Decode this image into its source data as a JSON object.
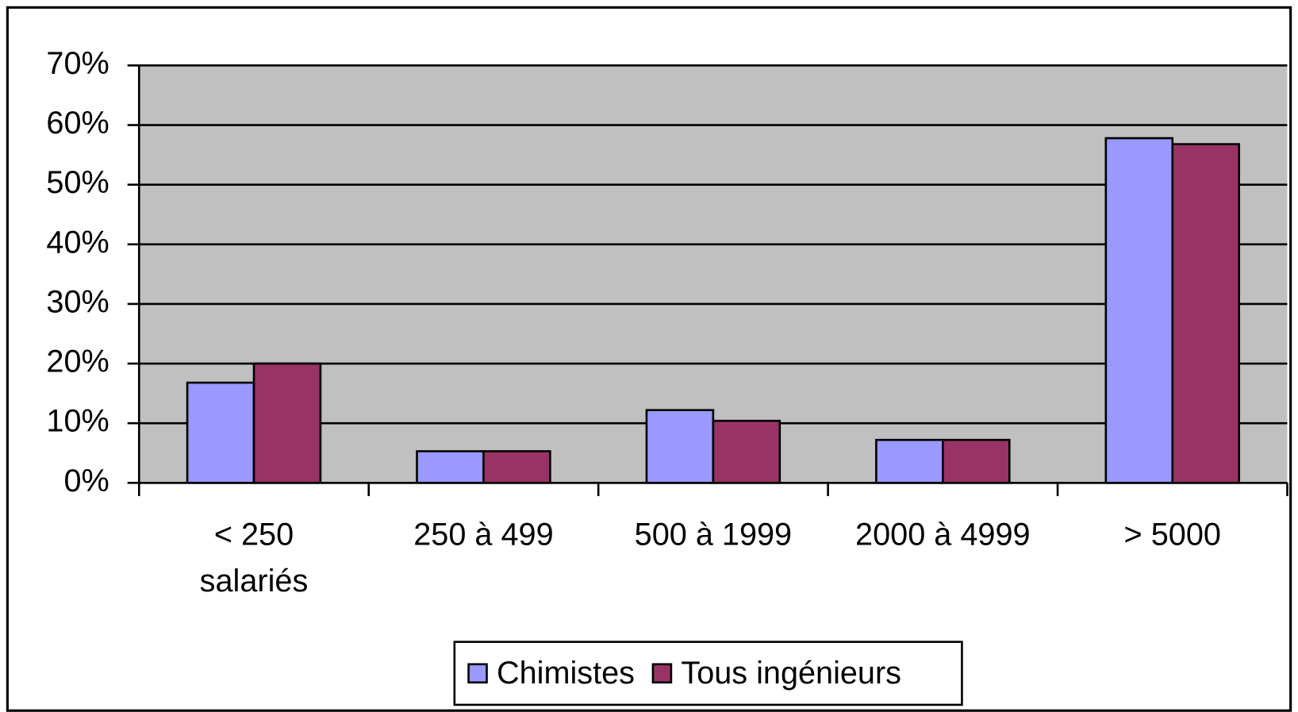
{
  "chart_data": {
    "type": "bar",
    "categories": [
      "< 250 salariés",
      "250 à 499",
      "500 à 1999",
      "2000 à 4999",
      "> 5000"
    ],
    "series": [
      {
        "name": "Chimistes",
        "color": "#9999ff",
        "values": [
          16.8,
          5.3,
          12.2,
          7.2,
          57.8
        ]
      },
      {
        "name": "Tous ingénieurs",
        "color": "#993366",
        "values": [
          20,
          5.3,
          10.4,
          7.2,
          56.8
        ]
      }
    ],
    "ylim": [
      0,
      70
    ],
    "yticks": [
      {
        "value": 0,
        "label": "0%"
      },
      {
        "value": 10,
        "label": "10%"
      },
      {
        "value": 20,
        "label": "20%"
      },
      {
        "value": 30,
        "label": "30%"
      },
      {
        "value": 40,
        "label": "40%"
      },
      {
        "value": 50,
        "label": "50%"
      },
      {
        "value": 60,
        "label": "60%"
      },
      {
        "value": 70,
        "label": "70%"
      }
    ],
    "grid": true,
    "legend": "bottom",
    "plot_background": "#c0c0c0"
  }
}
